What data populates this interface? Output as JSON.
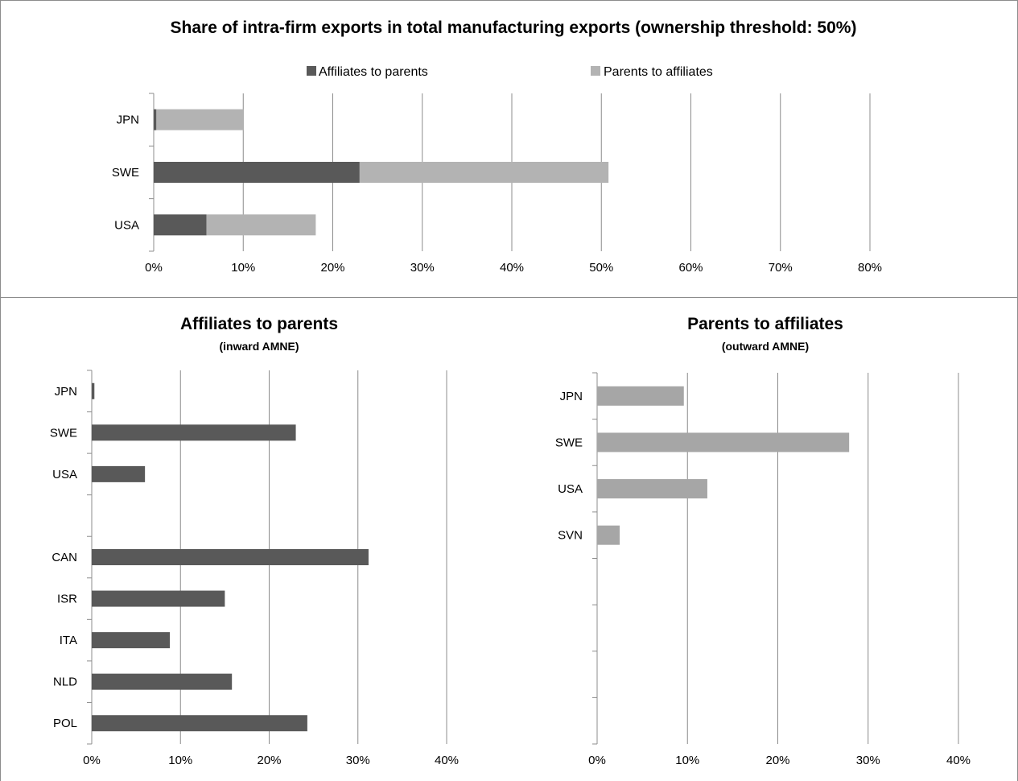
{
  "chart_data": [
    {
      "type": "bar",
      "orientation": "horizontal",
      "stacked": true,
      "title": "Share of intra-firm exports in total manufacturing exports (ownership threshold: 50%)",
      "categories": [
        "JPN",
        "SWE",
        "USA"
      ],
      "series": [
        {
          "name": "Affiliates to parents",
          "color": "#595959",
          "values": [
            0.3,
            23.0,
            5.9
          ]
        },
        {
          "name": "Parents to affiliates",
          "color": "#b3b3b3",
          "values": [
            9.7,
            27.8,
            12.2
          ]
        }
      ],
      "x_ticks": [
        "0%",
        "10%",
        "20%",
        "30%",
        "40%",
        "50%",
        "60%",
        "70%",
        "80%"
      ],
      "xlim": [
        0,
        80
      ],
      "grid": "vertical",
      "legend": "top"
    },
    {
      "type": "bar",
      "orientation": "horizontal",
      "title": "Affiliates to parents",
      "subtitle": "(inward AMNE)",
      "categories": [
        "JPN",
        "SWE",
        "USA",
        "",
        "CAN",
        "ISR",
        "ITA",
        "NLD",
        "POL"
      ],
      "series": [
        {
          "color": "#595959",
          "values": [
            0.3,
            23.0,
            6.0,
            null,
            31.2,
            15.0,
            8.8,
            15.8,
            24.3
          ]
        }
      ],
      "x_ticks": [
        "0%",
        "10%",
        "20%",
        "30%",
        "40%"
      ],
      "xlim": [
        0,
        40
      ],
      "grid": "vertical"
    },
    {
      "type": "bar",
      "orientation": "horizontal",
      "title": "Parents to affiliates",
      "subtitle": "(outward AMNE)",
      "categories": [
        "JPN",
        "SWE",
        "USA",
        "SVN",
        "",
        "",
        "",
        ""
      ],
      "series": [
        {
          "color": "#a6a6a6",
          "values": [
            9.6,
            27.9,
            12.2,
            2.5,
            null,
            null,
            null,
            null
          ]
        }
      ],
      "x_ticks": [
        "0%",
        "10%",
        "20%",
        "30%",
        "40%"
      ],
      "xlim": [
        0,
        40
      ],
      "grid": "vertical"
    }
  ]
}
